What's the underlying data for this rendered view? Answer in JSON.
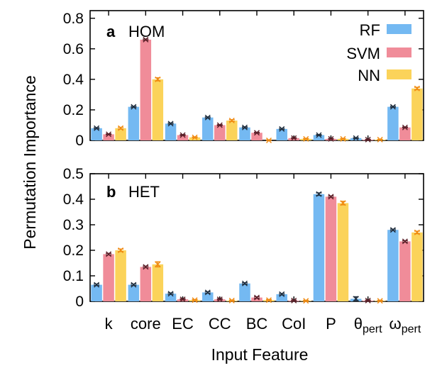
{
  "chart_data": {
    "type": "bar",
    "ylabel": "Permutation Importance",
    "xlabel": "Input Feature",
    "categories": [
      "k",
      "core",
      "EC",
      "CC",
      "BC",
      "CoI",
      "P",
      "θ_pert",
      "ω_pert"
    ],
    "category_labels": [
      {
        "base": "k",
        "sub": ""
      },
      {
        "base": "core",
        "sub": ""
      },
      {
        "base": "EC",
        "sub": ""
      },
      {
        "base": "CC",
        "sub": ""
      },
      {
        "base": "BC",
        "sub": ""
      },
      {
        "base": "CoI",
        "sub": ""
      },
      {
        "base": "P",
        "sub": ""
      },
      {
        "base": "θ",
        "sub": "pert"
      },
      {
        "base": "ω",
        "sub": "pert"
      }
    ],
    "legend": {
      "position": "top-right",
      "entries": [
        "RF",
        "SVM",
        "NN"
      ]
    },
    "colors": {
      "RF": "#74b9f2",
      "SVM": "#f08c99",
      "NN": "#fbd35a",
      "RF_err": "#1f2d3d",
      "SVM_err": "#5a1f28",
      "NN_err": "#f08a10"
    },
    "panels": [
      {
        "letter": "a",
        "title": "HOM",
        "ylim": [
          0,
          0.85
        ],
        "yticks": [
          "0",
          "0.2",
          "0.4",
          "0.6",
          "0.8"
        ],
        "ytick_values": [
          0,
          0.2,
          0.4,
          0.6,
          0.8
        ],
        "series": [
          {
            "name": "RF",
            "values": [
              0.08,
              0.22,
              0.11,
              0.15,
              0.085,
              0.075,
              0.035,
              0.015,
              0.22
            ],
            "errors": [
              0.004,
              0.004,
              0.004,
              0.004,
              0.004,
              0.004,
              0.003,
              0.003,
              0.004
            ]
          },
          {
            "name": "SVM",
            "values": [
              0.04,
              0.66,
              0.035,
              0.1,
              0.05,
              0.015,
              0.01,
              0.005,
              0.085
            ],
            "errors": [
              0.003,
              0.004,
              0.003,
              0.003,
              0.003,
              0.002,
              0.002,
              0.002,
              0.003
            ]
          },
          {
            "name": "NN",
            "values": [
              0.08,
              0.4,
              0.02,
              0.13,
              0.0,
              0.01,
              0.01,
              0.005,
              0.34
            ],
            "errors": [
              0.006,
              0.01,
              0.003,
              0.006,
              0.003,
              0.002,
              0.002,
              0.002,
              0.008
            ]
          }
        ]
      },
      {
        "letter": "b",
        "title": "HET",
        "ylim": [
          0,
          0.5
        ],
        "yticks": [
          "0",
          "0.1",
          "0.2",
          "0.3",
          "0.4",
          "0.5"
        ],
        "ytick_values": [
          0,
          0.1,
          0.2,
          0.3,
          0.4,
          0.5
        ],
        "series": [
          {
            "name": "RF",
            "values": [
              0.065,
              0.065,
              0.03,
              0.035,
              0.07,
              0.028,
              0.42,
              0.01,
              0.28
            ],
            "errors": [
              0.003,
              0.003,
              0.003,
              0.003,
              0.003,
              0.003,
              0.005,
              0.008,
              0.003
            ]
          },
          {
            "name": "SVM",
            "values": [
              0.185,
              0.135,
              0.008,
              0.008,
              0.015,
              0.003,
              0.41,
              0.003,
              0.235
            ],
            "errors": [
              0.003,
              0.003,
              0.002,
              0.002,
              0.003,
              0.002,
              0.003,
              0.002,
              0.003
            ]
          },
          {
            "name": "NN",
            "values": [
              0.2,
              0.145,
              0.005,
              0.003,
              0.005,
              0.002,
              0.385,
              0.002,
              0.27
            ],
            "errors": [
              0.005,
              0.01,
              0.002,
              0.002,
              0.002,
              0.002,
              0.007,
              0.002,
              0.005
            ]
          }
        ]
      }
    ]
  }
}
